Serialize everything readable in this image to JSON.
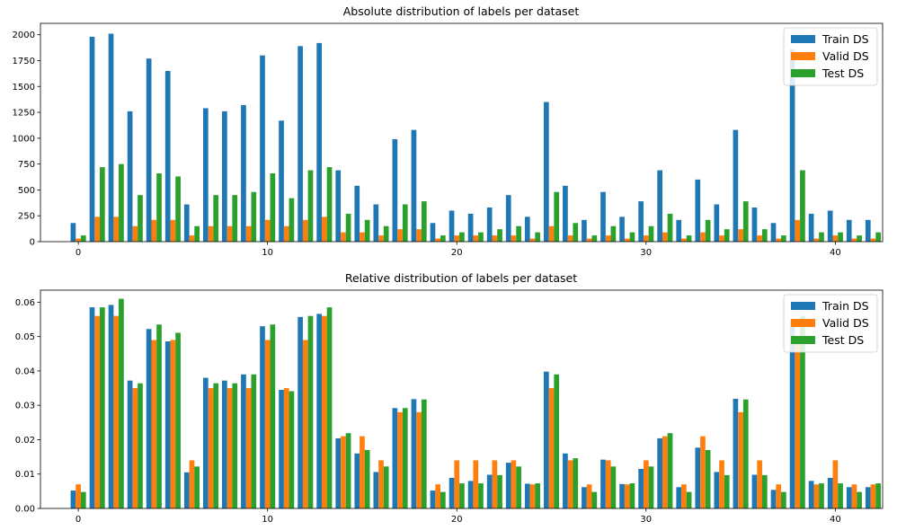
{
  "chart_data": [
    {
      "type": "bar",
      "title": "Absolute distribution of labels per dataset",
      "xlabel": "",
      "ylabel": "",
      "xlim": [
        -2,
        42.5
      ],
      "ylim": [
        0,
        2110
      ],
      "xticks": [
        0,
        10,
        20,
        30,
        40
      ],
      "yticks": [
        0,
        250,
        500,
        750,
        1000,
        1250,
        1500,
        1750,
        2000
      ],
      "legend_position": "top-right",
      "categories": [
        0,
        1,
        2,
        3,
        4,
        5,
        6,
        7,
        8,
        9,
        10,
        11,
        12,
        13,
        14,
        15,
        16,
        17,
        18,
        19,
        20,
        21,
        22,
        23,
        24,
        25,
        26,
        27,
        28,
        29,
        30,
        31,
        32,
        33,
        34,
        35,
        36,
        37,
        38,
        39,
        40,
        41,
        42
      ],
      "series": [
        {
          "name": "Train DS",
          "color": "#1f77b4",
          "values": [
            180,
            1980,
            2010,
            1260,
            1770,
            1650,
            360,
            1290,
            1260,
            1320,
            1800,
            1170,
            1890,
            1920,
            690,
            540,
            360,
            990,
            1080,
            180,
            300,
            270,
            330,
            450,
            240,
            1350,
            540,
            210,
            480,
            240,
            390,
            690,
            210,
            600,
            360,
            1080,
            330,
            180,
            1860,
            270,
            300,
            210,
            210
          ]
        },
        {
          "name": "Valid DS",
          "color": "#ff7f0e",
          "values": [
            30,
            240,
            240,
            150,
            210,
            210,
            60,
            150,
            150,
            150,
            210,
            150,
            210,
            240,
            90,
            90,
            60,
            120,
            120,
            30,
            60,
            60,
            60,
            60,
            30,
            150,
            60,
            30,
            60,
            30,
            60,
            90,
            30,
            90,
            60,
            120,
            60,
            30,
            210,
            30,
            60,
            30,
            30
          ]
        },
        {
          "name": "Test DS",
          "color": "#2ca02c",
          "values": [
            60,
            720,
            750,
            450,
            660,
            630,
            150,
            450,
            450,
            480,
            660,
            420,
            690,
            720,
            270,
            210,
            150,
            360,
            390,
            60,
            90,
            90,
            120,
            150,
            90,
            480,
            180,
            60,
            150,
            90,
            150,
            270,
            60,
            210,
            120,
            390,
            120,
            60,
            690,
            90,
            90,
            60,
            90
          ]
        }
      ]
    },
    {
      "type": "bar",
      "title": "Relative distribution of labels per dataset",
      "xlabel": "",
      "ylabel": "",
      "xlim": [
        -2,
        42.5
      ],
      "ylim": [
        0,
        0.0635
      ],
      "xticks": [
        0,
        10,
        20,
        30,
        40
      ],
      "yticks": [
        0.0,
        0.01,
        0.02,
        0.03,
        0.04,
        0.05,
        0.06
      ],
      "ytick_labels": [
        "0.00",
        "0.01",
        "0.02",
        "0.03",
        "0.04",
        "0.05",
        "0.06"
      ],
      "legend_position": "top-right",
      "categories": [
        0,
        1,
        2,
        3,
        4,
        5,
        6,
        7,
        8,
        9,
        10,
        11,
        12,
        13,
        14,
        15,
        16,
        17,
        18,
        19,
        20,
        21,
        22,
        23,
        24,
        25,
        26,
        27,
        28,
        29,
        30,
        31,
        32,
        33,
        34,
        35,
        36,
        37,
        38,
        39,
        40,
        41,
        42
      ],
      "series": [
        {
          "name": "Train DS",
          "color": "#1f77b4",
          "values": [
            0.0052,
            0.0585,
            0.0592,
            0.0372,
            0.0522,
            0.0486,
            0.0105,
            0.038,
            0.0372,
            0.039,
            0.053,
            0.0345,
            0.0557,
            0.0566,
            0.0204,
            0.016,
            0.0106,
            0.0292,
            0.0318,
            0.0052,
            0.0089,
            0.008,
            0.0098,
            0.0133,
            0.0072,
            0.0398,
            0.016,
            0.0062,
            0.0142,
            0.0071,
            0.0115,
            0.0204,
            0.0062,
            0.0177,
            0.0106,
            0.0319,
            0.0098,
            0.0054,
            0.0549,
            0.008,
            0.0089,
            0.0062,
            0.0062
          ]
        },
        {
          "name": "Valid DS",
          "color": "#ff7f0e",
          "values": [
            0.007,
            0.056,
            0.056,
            0.035,
            0.049,
            0.049,
            0.014,
            0.035,
            0.035,
            0.035,
            0.049,
            0.035,
            0.049,
            0.056,
            0.021,
            0.021,
            0.014,
            0.028,
            0.028,
            0.007,
            0.014,
            0.014,
            0.014,
            0.014,
            0.007,
            0.035,
            0.014,
            0.007,
            0.014,
            0.007,
            0.014,
            0.021,
            0.007,
            0.021,
            0.014,
            0.028,
            0.014,
            0.007,
            0.049,
            0.007,
            0.014,
            0.007,
            0.007
          ]
        },
        {
          "name": "Test DS",
          "color": "#2ca02c",
          "values": [
            0.0048,
            0.0585,
            0.061,
            0.0364,
            0.0535,
            0.0511,
            0.0122,
            0.0364,
            0.0364,
            0.039,
            0.0535,
            0.0341,
            0.056,
            0.0585,
            0.0219,
            0.017,
            0.0122,
            0.0292,
            0.0317,
            0.0048,
            0.0073,
            0.0073,
            0.0097,
            0.0122,
            0.0073,
            0.039,
            0.0146,
            0.0048,
            0.0122,
            0.0073,
            0.0122,
            0.0219,
            0.0048,
            0.017,
            0.0097,
            0.0317,
            0.0097,
            0.0048,
            0.056,
            0.0073,
            0.0073,
            0.0048,
            0.0073
          ]
        }
      ]
    }
  ]
}
